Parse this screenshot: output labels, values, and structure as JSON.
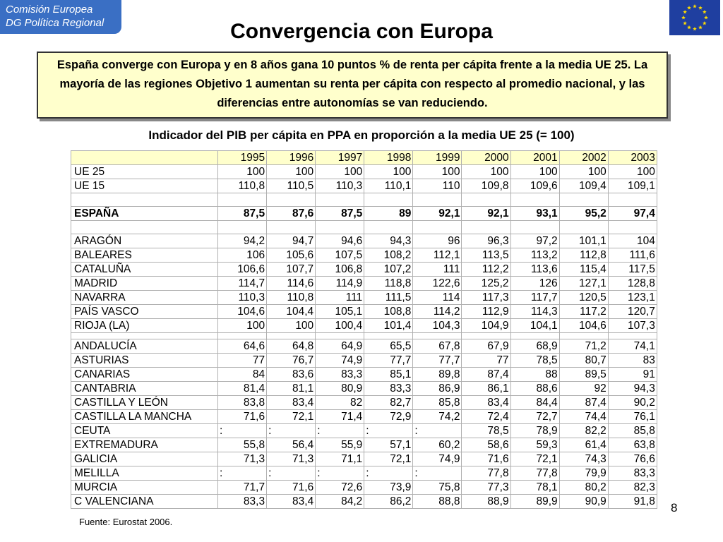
{
  "header": {
    "logo_line1": "Comisión Europea",
    "logo_line2": "DG Política Regional",
    "title": "Convergencia con Europa"
  },
  "summary": "España converge con Europa y en 8 años gana 10 puntos % de renta per cápita frente a la media UE 25. La mayoría de las regiones Objetivo 1 aumentan su renta per cápita con respecto al promedio nacional, y las diferencias entre autonomías se van reduciendo.",
  "subtitle": "Indicador del PIB per cápita en PPA en proporción a la media UE 25 (= 100)",
  "table": {
    "years": [
      "1995",
      "1996",
      "1997",
      "1998",
      "1999",
      "2000",
      "2001",
      "2002",
      "2003"
    ],
    "groups": [
      {
        "rows": [
          {
            "name": "UE 25",
            "values": [
              "100",
              "100",
              "100",
              "100",
              "100",
              "100",
              "100",
              "100",
              "100"
            ]
          },
          {
            "name": "UE 15",
            "values": [
              "110,8",
              "110,5",
              "110,3",
              "110,1",
              "110",
              "109,8",
              "109,6",
              "109,4",
              "109,1"
            ]
          }
        ]
      },
      {
        "rows": [
          {
            "name": "ESPAÑA",
            "values": [
              "87,5",
              "87,6",
              "87,5",
              "89",
              "92,1",
              "92,1",
              "93,1",
              "95,2",
              "97,4"
            ]
          }
        ]
      },
      {
        "rows": [
          {
            "name": "ARAGÓN",
            "values": [
              "94,2",
              "94,7",
              "94,6",
              "94,3",
              "96",
              "96,3",
              "97,2",
              "101,1",
              "104"
            ]
          },
          {
            "name": "BALEARES",
            "values": [
              "106",
              "105,6",
              "107,5",
              "108,2",
              "112,1",
              "113,5",
              "113,2",
              "112,8",
              "111,6"
            ]
          },
          {
            "name": "CATALUÑA",
            "values": [
              "106,6",
              "107,7",
              "106,8",
              "107,2",
              "111",
              "112,2",
              "113,6",
              "115,4",
              "117,5"
            ]
          },
          {
            "name": "MADRID",
            "values": [
              "114,7",
              "114,6",
              "114,9",
              "118,8",
              "122,6",
              "125,2",
              "126",
              "127,1",
              "128,8"
            ]
          },
          {
            "name": "NAVARRA",
            "values": [
              "110,3",
              "110,8",
              "111",
              "111,5",
              "114",
              "117,3",
              "117,7",
              "120,5",
              "123,1"
            ]
          },
          {
            "name": "PAÍS VASCO",
            "values": [
              "104,6",
              "104,4",
              "105,1",
              "108,8",
              "114,2",
              "112,9",
              "114,3",
              "117,2",
              "120,7"
            ]
          },
          {
            "name": "RIOJA (LA)",
            "values": [
              "100",
              "100",
              "100,4",
              "101,4",
              "104,3",
              "104,9",
              "104,1",
              "104,6",
              "107,3"
            ]
          }
        ]
      },
      {
        "rows": [
          {
            "name": "ANDALUCÍA",
            "values": [
              "64,6",
              "64,8",
              "64,9",
              "65,5",
              "67,8",
              "67,9",
              "68,9",
              "71,2",
              "74,1"
            ]
          },
          {
            "name": "ASTURIAS",
            "values": [
              "77",
              "76,7",
              "74,9",
              "77,7",
              "77,7",
              "77",
              "78,5",
              "80,7",
              "83"
            ]
          },
          {
            "name": "CANARIAS",
            "values": [
              "84",
              "83,6",
              "83,3",
              "85,1",
              "89,8",
              "87,4",
              "88",
              "89,5",
              "91"
            ]
          },
          {
            "name": "CANTABRIA",
            "values": [
              "81,4",
              "81,1",
              "80,9",
              "83,3",
              "86,9",
              "86,1",
              "88,6",
              "92",
              "94,3"
            ]
          },
          {
            "name": "CASTILLA Y LEÓN",
            "values": [
              "83,8",
              "83,4",
              "82",
              "82,7",
              "85,8",
              "83,4",
              "84,4",
              "87,4",
              "90,2"
            ]
          },
          {
            "name": "CASTILLA LA MANCHA",
            "values": [
              "71,6",
              "72,1",
              "71,4",
              "72,9",
              "74,2",
              "72,4",
              "72,7",
              "74,4",
              "76,1"
            ]
          },
          {
            "name": "CEUTA",
            "values": [
              ":",
              ":",
              ":",
              ":",
              ":",
              "78,5",
              "78,9",
              "82,2",
              "85,8"
            ]
          },
          {
            "name": "EXTREMADURA",
            "values": [
              "55,8",
              "56,4",
              "55,9",
              "57,1",
              "60,2",
              "58,6",
              "59,3",
              "61,4",
              "63,8"
            ]
          },
          {
            "name": "GALICIA",
            "values": [
              "71,3",
              "71,3",
              "71,1",
              "72,1",
              "74,9",
              "71,6",
              "72,1",
              "74,3",
              "76,6"
            ]
          },
          {
            "name": "MELILLA",
            "values": [
              ":",
              ":",
              ":",
              ":",
              ":",
              "77,8",
              "77,8",
              "79,9",
              "83,3"
            ]
          },
          {
            "name": "MURCIA",
            "values": [
              "71,7",
              "71,6",
              "72,6",
              "73,9",
              "75,8",
              "77,3",
              "78,1",
              "80,2",
              "82,3"
            ]
          },
          {
            "name": "C VALENCIANA",
            "values": [
              "83,3",
              "83,4",
              "84,2",
              "86,2",
              "88,8",
              "88,9",
              "89,9",
              "90,9",
              "91,8"
            ]
          }
        ]
      }
    ]
  },
  "source": "Fuente: Eurostat 2006.",
  "page_number": "8"
}
